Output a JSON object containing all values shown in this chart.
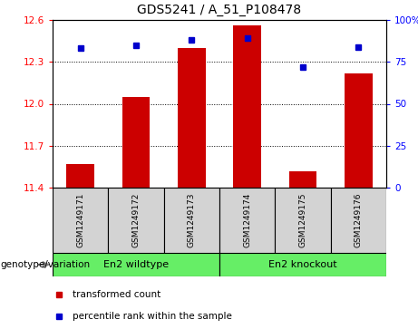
{
  "title": "GDS5241 / A_51_P108478",
  "samples": [
    "GSM1249171",
    "GSM1249172",
    "GSM1249173",
    "GSM1249174",
    "GSM1249175",
    "GSM1249176"
  ],
  "red_values": [
    11.57,
    12.05,
    12.4,
    12.56,
    11.52,
    12.22
  ],
  "blue_values": [
    83,
    85,
    88,
    89,
    72,
    84
  ],
  "ylim_left": [
    11.4,
    12.6
  ],
  "ylim_right": [
    0,
    100
  ],
  "yticks_left": [
    11.4,
    11.7,
    12.0,
    12.3,
    12.6
  ],
  "yticks_right": [
    0,
    25,
    50,
    75,
    100
  ],
  "ytick_right_labels": [
    "0",
    "25",
    "50",
    "75",
    "100%"
  ],
  "bar_color": "#cc0000",
  "dot_color": "#0000cc",
  "bar_bottom": 11.4,
  "legend_red_label": "transformed count",
  "legend_blue_label": "percentile rank within the sample",
  "sample_box_color": "#d3d3d3",
  "group_box_color": "#66ee66",
  "plot_bg_color": "#ffffff",
  "title_fontsize": 10,
  "tick_label_fontsize": 7.5,
  "sample_fontsize": 6.5,
  "group_fontsize": 8,
  "legend_fontsize": 7.5,
  "group_labels": [
    "En2 wildtype",
    "En2 knockout"
  ],
  "group_ranges": [
    [
      0,
      2
    ],
    [
      3,
      5
    ]
  ],
  "genotype_label": "genotype/variation"
}
